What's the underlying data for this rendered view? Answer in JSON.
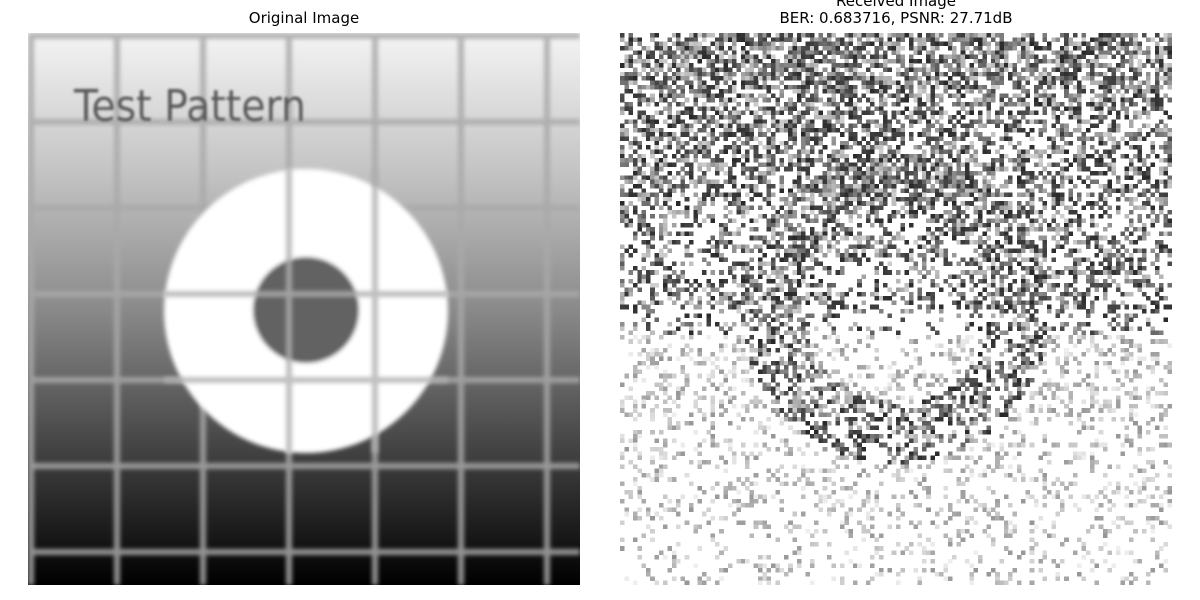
{
  "figure": {
    "left_panel": {
      "title": "Original Image",
      "embedded_text": "Test Pattern"
    },
    "right_panel": {
      "title_line1": "Received Image",
      "title_line2": "BER: 0.683716, PSNR: 27.71dB"
    }
  }
}
